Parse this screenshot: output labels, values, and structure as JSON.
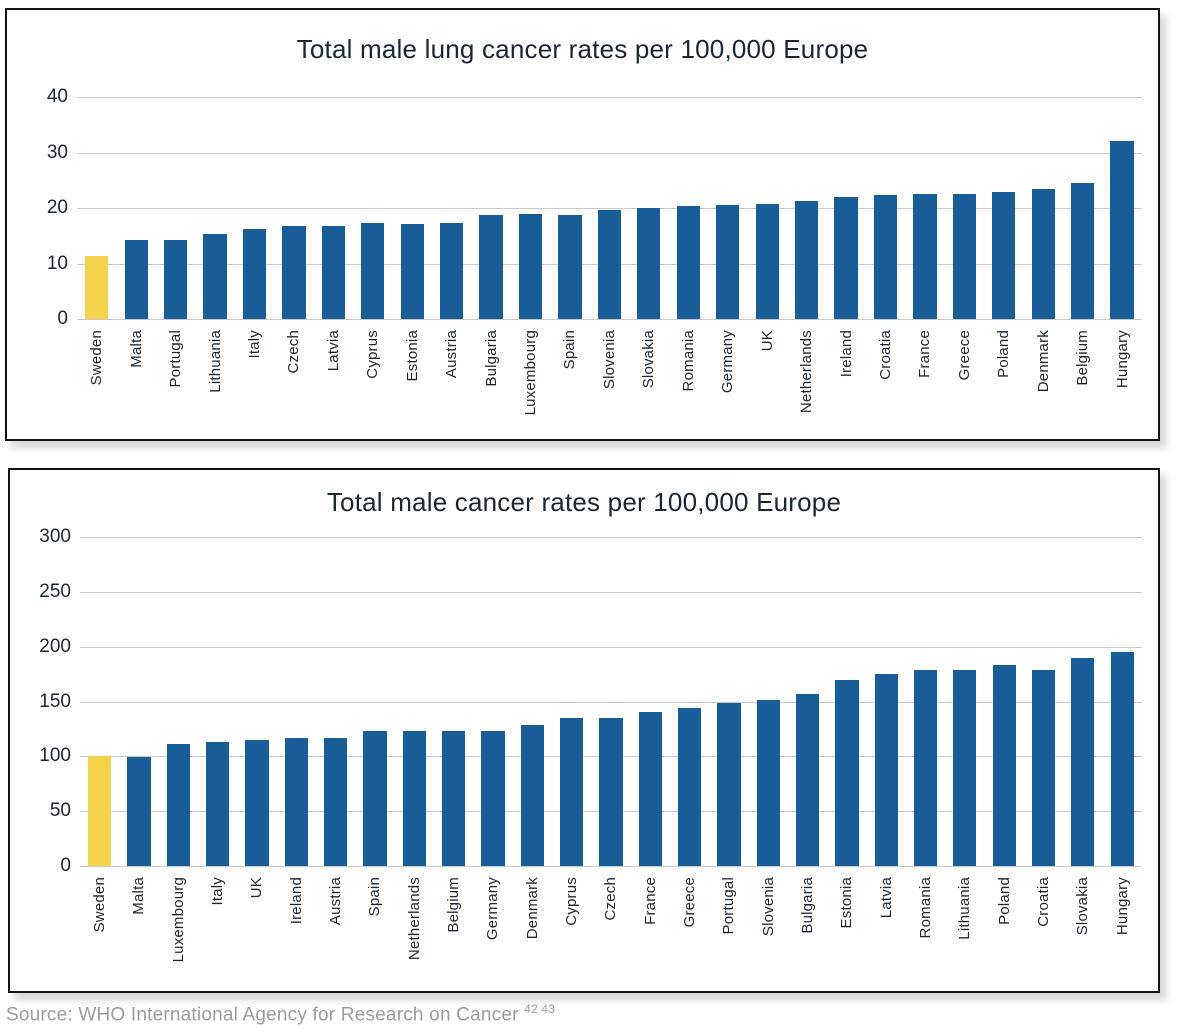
{
  "colors": {
    "bar_blue": "#185D96",
    "bar_yellow": "#F5D24B",
    "gridline": "#C9C9C9",
    "text": "#1C2633",
    "source_text": "#9A9CA0",
    "panel_border": "#141414"
  },
  "source": {
    "text": "Source: WHO International Agency for Research on Cancer",
    "superscript": "42 43"
  },
  "chart_data": [
    {
      "type": "bar",
      "title": "Total male lung cancer rates per 100,000 Europe",
      "categories": [
        "Sweden",
        "Malta",
        "Portugal",
        "Lithuania",
        "Italy",
        "Czech",
        "Latvia",
        "Cyprus",
        "Estonia",
        "Austria",
        "Bulgaria",
        "Luxembourg",
        "Spain",
        "Slovenia",
        "Slovakia",
        "Romania",
        "Germany",
        "UK",
        "Netherlands",
        "Ireland",
        "Croatia",
        "France",
        "Greece",
        "Poland",
        "Denmark",
        "Belgium",
        "Hungary"
      ],
      "values": [
        11.3,
        14.2,
        14.2,
        15.3,
        16.3,
        16.7,
        16.7,
        17.3,
        17.2,
        17.3,
        18.8,
        19.0,
        18.8,
        19.6,
        20.0,
        20.3,
        20.5,
        20.8,
        21.3,
        22.0,
        22.3,
        22.5,
        22.5,
        22.8,
        23.4,
        24.5,
        32.0
      ],
      "highlight_category": "Sweden",
      "bar_color": "#185D96",
      "highlight_color": "#F5D24B",
      "ylim": [
        0,
        40
      ],
      "yticks": [
        0,
        10,
        20,
        30,
        40
      ],
      "grid": true,
      "legend": "none",
      "xlabel": "",
      "ylabel": ""
    },
    {
      "type": "bar",
      "title": "Total male cancer rates per 100,000 Europe",
      "categories": [
        "Sweden",
        "Malta",
        "Luxembourg",
        "Italy",
        "UK",
        "Ireland",
        "Austria",
        "Spain",
        "Netherlands",
        "Belgium",
        "Germany",
        "Denmark",
        "Cyprus",
        "Czech",
        "France",
        "Greece",
        "Portugal",
        "Slovenia",
        "Bulgaria",
        "Estonia",
        "Latvia",
        "Romania",
        "Lithuania",
        "Poland",
        "Croatia",
        "Slovakia",
        "Hungary"
      ],
      "values": [
        100,
        99,
        111,
        113,
        115,
        117,
        117,
        123,
        123,
        123,
        123,
        129,
        135,
        135,
        140,
        144,
        149,
        151,
        157,
        170,
        175,
        179,
        179,
        183,
        179,
        190,
        195
      ],
      "highlight_category": "Sweden",
      "bar_color": "#185D96",
      "highlight_color": "#F5D24B",
      "ylim": [
        0,
        300
      ],
      "yticks": [
        0,
        50,
        100,
        150,
        200,
        250,
        300
      ],
      "grid": true,
      "legend": "none",
      "xlabel": "",
      "ylabel": ""
    }
  ]
}
